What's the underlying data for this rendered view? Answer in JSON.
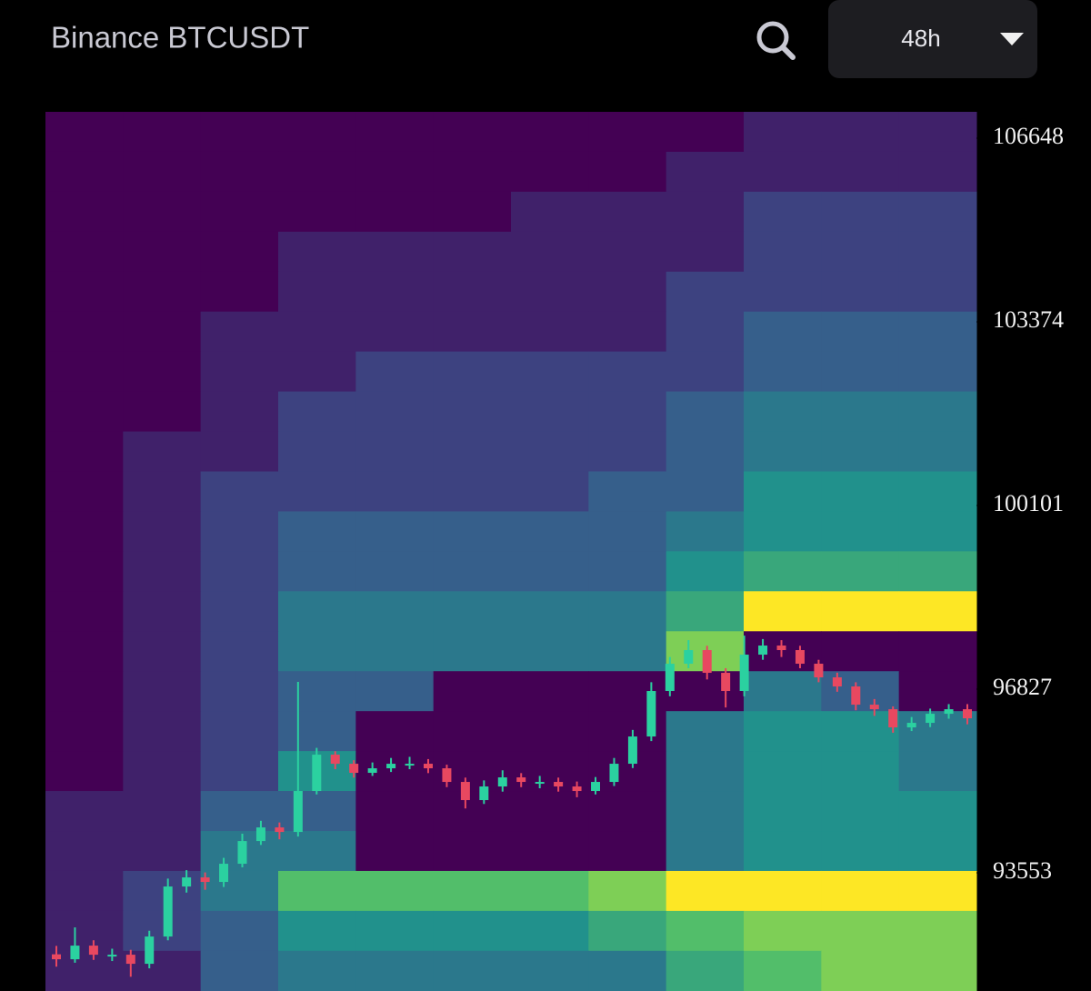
{
  "chart_data": {
    "type": "heatmap",
    "title": "Binance BTCUSDT",
    "timeframe": "48h",
    "ylim": [
      91446,
      107118
    ],
    "yticks": [
      106648,
      103374,
      100101,
      96827,
      93553
    ],
    "ybins": [
      107118,
      106406,
      105694,
      104981,
      104269,
      103557,
      102845,
      102133,
      101420,
      100708,
      99996,
      99284,
      98572,
      97859,
      97147,
      96435,
      95723,
      95011,
      94298,
      93586,
      92874,
      92162,
      91446
    ],
    "zlim": [
      0,
      10
    ],
    "colormap": [
      "#440154",
      "#3b528b",
      "#21918c",
      "#5ec962",
      "#fde725"
    ],
    "z": [
      [
        0,
        0,
        0,
        0,
        0,
        0,
        0,
        0,
        0,
        1,
        1,
        1
      ],
      [
        0,
        0,
        0,
        0,
        0,
        0,
        0,
        0,
        1,
        1,
        1,
        1
      ],
      [
        0,
        0,
        0,
        0,
        0,
        0,
        1,
        1,
        1,
        2,
        2,
        2
      ],
      [
        0,
        0,
        0,
        1,
        1,
        1,
        1,
        1,
        1,
        2,
        2,
        2
      ],
      [
        0,
        0,
        0,
        1,
        1,
        1,
        1,
        1,
        2,
        2,
        2,
        2
      ],
      [
        0,
        0,
        1,
        1,
        1,
        1,
        1,
        1,
        2,
        3,
        3,
        3
      ],
      [
        0,
        0,
        1,
        1,
        2,
        2,
        2,
        2,
        2,
        3,
        3,
        3
      ],
      [
        0,
        0,
        1,
        2,
        2,
        2,
        2,
        2,
        3,
        4,
        4,
        4
      ],
      [
        0,
        1,
        1,
        2,
        2,
        2,
        2,
        2,
        3,
        4,
        4,
        4
      ],
      [
        0,
        1,
        2,
        2,
        2,
        2,
        2,
        3,
        3,
        5,
        5,
        5
      ],
      [
        0,
        1,
        2,
        3,
        3,
        3,
        3,
        3,
        4,
        5,
        5,
        5
      ],
      [
        0,
        1,
        2,
        3,
        3,
        3,
        3,
        3,
        5,
        6,
        6,
        6
      ],
      [
        0,
        1,
        2,
        4,
        4,
        4,
        4,
        4,
        6,
        10,
        10,
        10
      ],
      [
        0,
        1,
        2,
        4,
        4,
        4,
        4,
        4,
        8,
        0,
        0,
        0
      ],
      [
        0,
        1,
        2,
        3,
        3,
        0,
        0,
        0,
        0,
        4,
        3,
        0
      ],
      [
        0,
        1,
        2,
        3,
        0,
        0,
        0,
        0,
        4,
        5,
        5,
        4
      ],
      [
        0,
        1,
        2,
        5,
        0,
        0,
        0,
        0,
        4,
        5,
        5,
        4
      ],
      [
        1,
        1,
        3,
        3,
        0,
        0,
        0,
        0,
        4,
        5,
        5,
        5
      ],
      [
        1,
        1,
        4,
        4,
        0,
        0,
        0,
        0,
        4,
        5,
        5,
        5
      ],
      [
        1,
        2,
        4,
        7,
        7,
        7,
        7,
        8,
        10,
        10,
        10,
        10
      ],
      [
        1,
        2,
        3,
        5,
        5,
        5,
        5,
        6,
        7,
        8,
        8,
        8
      ],
      [
        1,
        1,
        3,
        4,
        4,
        4,
        4,
        4,
        6,
        7,
        8,
        8
      ]
    ],
    "up_color": "#2bd1a0",
    "down_color": "#e84860",
    "candles": {
      "open": [
        92100,
        92012,
        92255,
        92093,
        92093,
        91931,
        92417,
        93309,
        93471,
        93390,
        93714,
        94119,
        94362,
        94281,
        95011,
        95659,
        95497,
        95335,
        95416,
        95497,
        95497,
        95416,
        95173,
        94849,
        95092,
        95254,
        95173,
        95173,
        95092,
        95011,
        95173,
        95497,
        95983,
        96794,
        97280,
        97523,
        97118,
        96794,
        97442,
        97604,
        97523,
        97280,
        97037,
        96875,
        96550,
        96469,
        96145,
        96226,
        96388,
        96469
      ],
      "high": [
        92250,
        92580,
        92350,
        92200,
        92180,
        92520,
        93450,
        93600,
        93560,
        93820,
        94250,
        94480,
        94450,
        96956,
        95780,
        95720,
        95560,
        95520,
        95600,
        95620,
        95580,
        95480,
        95250,
        95200,
        95380,
        95330,
        95280,
        95250,
        95180,
        95260,
        95600,
        96100,
        96950,
        97400,
        97700,
        97600,
        97200,
        97780,
        97720,
        97700,
        97600,
        97350,
        97120,
        96950,
        96650,
        96520,
        96330,
        96480,
        96560,
        96560
      ],
      "low": [
        91880,
        91950,
        92000,
        91980,
        91700,
        91850,
        92350,
        93200,
        93250,
        93300,
        93650,
        94050,
        94150,
        94200,
        94950,
        95400,
        95250,
        95280,
        95350,
        95400,
        95330,
        95080,
        94700,
        94780,
        95000,
        95080,
        95060,
        95000,
        94900,
        94950,
        95100,
        95420,
        95900,
        96700,
        97200,
        97000,
        96500,
        96700,
        97350,
        97400,
        97200,
        96950,
        96780,
        96450,
        96350,
        96050,
        96080,
        96150,
        96300,
        96200
      ],
      "close": [
        92012,
        92255,
        92093,
        92093,
        91931,
        92417,
        93309,
        93471,
        93390,
        93714,
        94119,
        94362,
        94281,
        95011,
        95659,
        95497,
        95335,
        95416,
        95497,
        95497,
        95416,
        95173,
        94849,
        95092,
        95254,
        95173,
        95173,
        95092,
        95011,
        95173,
        95497,
        95983,
        96794,
        97280,
        97523,
        97118,
        96794,
        97442,
        97604,
        97523,
        97280,
        97037,
        96875,
        96550,
        96469,
        96145,
        96226,
        96388,
        96469,
        96307
      ]
    }
  }
}
